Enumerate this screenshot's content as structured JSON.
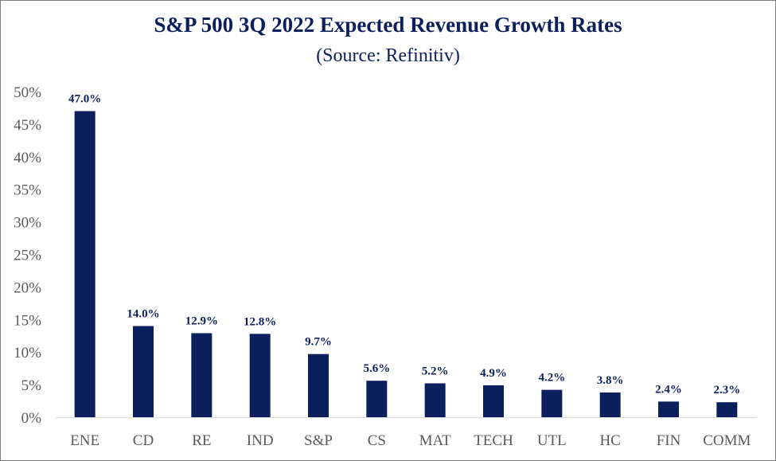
{
  "chart_data": {
    "type": "bar",
    "title": "S&P 500 3Q 2022 Expected Revenue Growth Rates",
    "subtitle": "(Source: Refinitiv)",
    "xlabel": "",
    "ylabel": "",
    "categories": [
      "ENE",
      "CD",
      "RE",
      "IND",
      "S&P",
      "CS",
      "MAT",
      "TECH",
      "UTL",
      "HC",
      "FIN",
      "COMM"
    ],
    "values": [
      47.0,
      14.0,
      12.9,
      12.8,
      9.7,
      5.6,
      5.2,
      4.9,
      4.2,
      3.8,
      2.4,
      2.3
    ],
    "data_labels": [
      "47.0%",
      "14.0%",
      "12.9%",
      "12.8%",
      "9.7%",
      "5.6%",
      "5.2%",
      "4.9%",
      "4.2%",
      "3.8%",
      "2.4%",
      "2.3%"
    ],
    "ylim": [
      0,
      50
    ],
    "yticks": [
      0,
      5,
      10,
      15,
      20,
      25,
      30,
      35,
      40,
      45,
      50
    ],
    "ytick_labels": [
      "0%",
      "5%",
      "10%",
      "15%",
      "20%",
      "25%",
      "30%",
      "35%",
      "40%",
      "45%",
      "50%"
    ],
    "grid": false,
    "legend": "none",
    "bar_color": "#0b1f5c"
  }
}
